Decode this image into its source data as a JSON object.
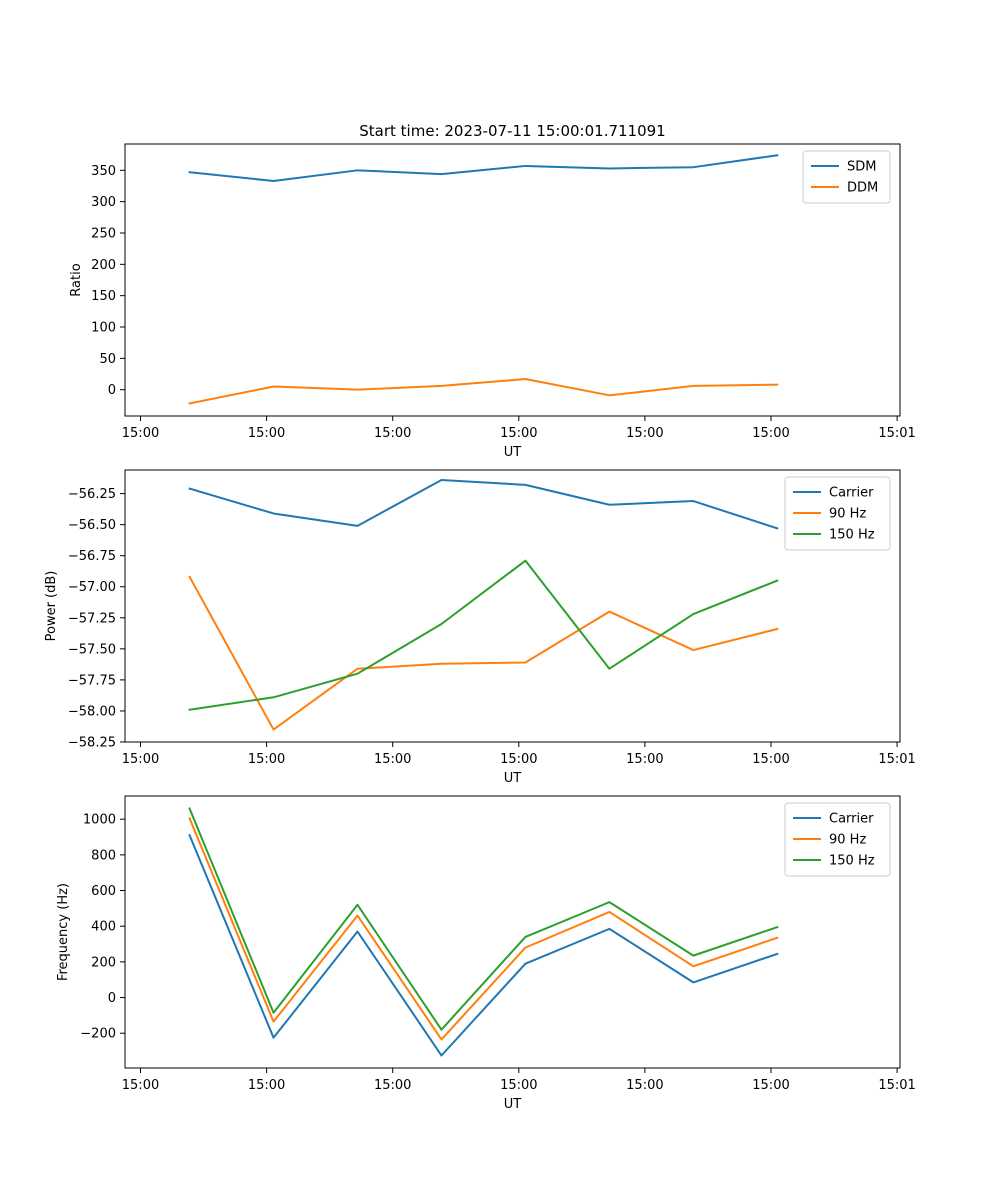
{
  "chart_data": [
    {
      "type": "line",
      "title": "Start time: 2023-07-11 15:00:01.711091",
      "xlabel": "UT",
      "ylabel": "Ratio",
      "x_tick_labels": [
        "15:00",
        "15:00",
        "15:00",
        "15:00",
        "15:00",
        "15:00",
        "15:01"
      ],
      "xlim": [
        0,
        3
      ],
      "x": [
        0.25,
        0.575,
        0.9,
        1.225,
        1.55,
        1.875,
        2.2,
        2.525
      ],
      "ylim": [
        -42,
        392
      ],
      "y_ticks": [
        0,
        50,
        100,
        150,
        200,
        250,
        300,
        350
      ],
      "y_tick_labels": [
        "0",
        "50",
        "100",
        "150",
        "200",
        "250",
        "300",
        "350"
      ],
      "legend_position": "top-right",
      "grid": false,
      "series": [
        {
          "name": "SDM",
          "color": "#1f77b4",
          "values": [
            347,
            333,
            350,
            344,
            357,
            353,
            355,
            374
          ]
        },
        {
          "name": "DDM",
          "color": "#ff7f0e",
          "values": [
            -22,
            5,
            0,
            6,
            17,
            -9,
            6,
            8
          ]
        }
      ]
    },
    {
      "type": "line",
      "title": "",
      "xlabel": "UT",
      "ylabel": "Power (dB)",
      "x_tick_labels": [
        "15:00",
        "15:00",
        "15:00",
        "15:00",
        "15:00",
        "15:00",
        "15:01"
      ],
      "xlim": [
        0,
        3
      ],
      "x": [
        0.25,
        0.575,
        0.9,
        1.225,
        1.55,
        1.875,
        2.2,
        2.525
      ],
      "ylim": [
        -58.25,
        -56.06
      ],
      "y_ticks": [
        -58.25,
        -58.0,
        -57.75,
        -57.5,
        -57.25,
        -57.0,
        -56.75,
        -56.5,
        -56.25
      ],
      "y_tick_labels": [
        "−58.25",
        "−58.00",
        "−57.75",
        "−57.50",
        "−57.25",
        "−57.00",
        "−56.75",
        "−56.50",
        "−56.25"
      ],
      "legend_position": "top-right",
      "grid": false,
      "series": [
        {
          "name": "Carrier",
          "color": "#1f77b4",
          "values": [
            -56.21,
            -56.41,
            -56.51,
            -56.14,
            -56.18,
            -56.34,
            -56.31,
            -56.53
          ]
        },
        {
          "name": "90 Hz",
          "color": "#ff7f0e",
          "values": [
            -56.92,
            -58.15,
            -57.66,
            -57.62,
            -57.61,
            -57.2,
            -57.51,
            -57.34
          ]
        },
        {
          "name": "150 Hz",
          "color": "#2ca02c",
          "values": [
            -57.99,
            -57.89,
            -57.7,
            -57.3,
            -56.79,
            -57.66,
            -57.22,
            -56.95
          ]
        }
      ]
    },
    {
      "type": "line",
      "title": "",
      "xlabel": "UT",
      "ylabel": "Frequency (Hz)",
      "x_tick_labels": [
        "15:00",
        "15:00",
        "15:00",
        "15:00",
        "15:00",
        "15:00",
        "15:01"
      ],
      "xlim": [
        0,
        3
      ],
      "x": [
        0.25,
        0.575,
        0.9,
        1.225,
        1.55,
        1.875,
        2.2,
        2.525
      ],
      "ylim": [
        -395,
        1130
      ],
      "y_ticks": [
        -200,
        0,
        200,
        400,
        600,
        800,
        1000
      ],
      "y_tick_labels": [
        "−200",
        "0",
        "200",
        "400",
        "600",
        "800",
        "1000"
      ],
      "legend_position": "top-right",
      "grid": false,
      "series": [
        {
          "name": "Carrier",
          "color": "#1f77b4",
          "values": [
            910,
            -225,
            370,
            -325,
            190,
            385,
            85,
            245
          ]
        },
        {
          "name": "90 Hz",
          "color": "#ff7f0e",
          "values": [
            1005,
            -135,
            460,
            -235,
            280,
            480,
            175,
            335
          ]
        },
        {
          "name": "150 Hz",
          "color": "#2ca02c",
          "values": [
            1060,
            -85,
            520,
            -180,
            340,
            535,
            235,
            395
          ]
        }
      ]
    }
  ]
}
